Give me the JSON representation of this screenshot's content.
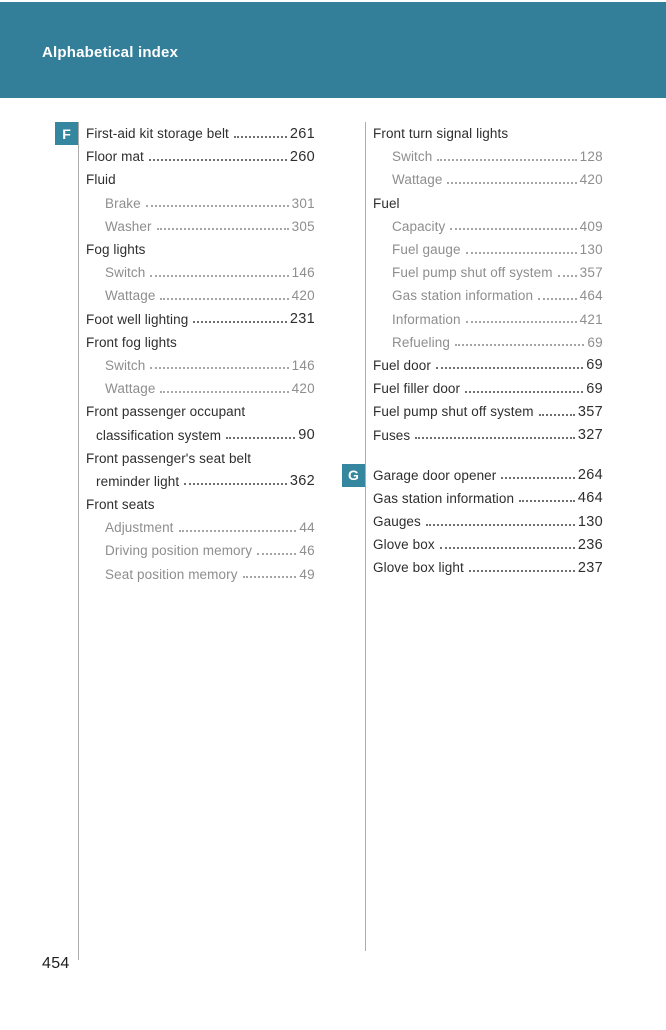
{
  "header": {
    "title": "Alphabetical index"
  },
  "footer": {
    "page_number": "454"
  },
  "colors": {
    "header_band": "#337E99",
    "letter_badge": "#3587A0"
  },
  "columns": [
    {
      "side": "left",
      "sections": [
        {
          "letter": "F",
          "gap_before": 0,
          "entries": [
            {
              "type": "main",
              "label": "First-aid kit storage belt",
              "page": "261"
            },
            {
              "type": "main",
              "label": "Floor mat",
              "page": "260"
            },
            {
              "type": "group",
              "label": "Fluid"
            },
            {
              "type": "sub",
              "label": "Brake",
              "page": "301"
            },
            {
              "type": "sub",
              "label": "Washer",
              "page": "305"
            },
            {
              "type": "group",
              "label": "Fog lights"
            },
            {
              "type": "sub",
              "label": "Switch",
              "page": "146"
            },
            {
              "type": "sub",
              "label": "Wattage",
              "page": "420"
            },
            {
              "type": "main",
              "label": "Foot well lighting",
              "page": "231"
            },
            {
              "type": "group",
              "label": "Front fog lights"
            },
            {
              "type": "sub",
              "label": "Switch",
              "page": "146"
            },
            {
              "type": "sub",
              "label": "Wattage",
              "page": "420"
            },
            {
              "type": "wrap",
              "label": "Front passenger occupant"
            },
            {
              "type": "cont",
              "label": "classification system",
              "page": "90"
            },
            {
              "type": "wrap",
              "label": "Front passenger's seat belt"
            },
            {
              "type": "cont",
              "label": "reminder light",
              "page": "362"
            },
            {
              "type": "group",
              "label": "Front seats"
            },
            {
              "type": "sub",
              "label": "Adjustment",
              "page": "44"
            },
            {
              "type": "sub",
              "label": "Driving position memory",
              "page": "46"
            },
            {
              "type": "sub",
              "label": "Seat position memory",
              "page": "49"
            }
          ]
        }
      ]
    },
    {
      "side": "right",
      "sections": [
        {
          "letter": null,
          "gap_before": 0,
          "entries": [
            {
              "type": "group",
              "label": "Front turn signal lights"
            },
            {
              "type": "sub",
              "label": "Switch",
              "page": "128"
            },
            {
              "type": "sub",
              "label": "Wattage",
              "page": "420"
            },
            {
              "type": "group",
              "label": "Fuel"
            },
            {
              "type": "sub",
              "label": "Capacity",
              "page": "409"
            },
            {
              "type": "sub",
              "label": "Fuel gauge",
              "page": "130"
            },
            {
              "type": "sub",
              "label": "Fuel pump shut off system",
              "page": "357"
            },
            {
              "type": "sub",
              "label": "Gas station information",
              "page": "464"
            },
            {
              "type": "sub",
              "label": "Information",
              "page": "421"
            },
            {
              "type": "sub",
              "label": "Refueling",
              "page": "69"
            },
            {
              "type": "main",
              "label": "Fuel door",
              "page": "69"
            },
            {
              "type": "main",
              "label": "Fuel filler door",
              "page": "69"
            },
            {
              "type": "main",
              "label": "Fuel pump shut off system",
              "page": "357"
            },
            {
              "type": "main",
              "label": "Fuses",
              "page": "327"
            }
          ]
        },
        {
          "letter": "G",
          "gap_before": 17,
          "entries": [
            {
              "type": "main",
              "label": "Garage door opener",
              "page": "264"
            },
            {
              "type": "main",
              "label": "Gas station information",
              "page": "464"
            },
            {
              "type": "main",
              "label": "Gauges",
              "page": "130"
            },
            {
              "type": "main",
              "label": "Glove box",
              "page": "236"
            },
            {
              "type": "main",
              "label": "Glove box light",
              "page": "237"
            }
          ]
        }
      ]
    }
  ]
}
